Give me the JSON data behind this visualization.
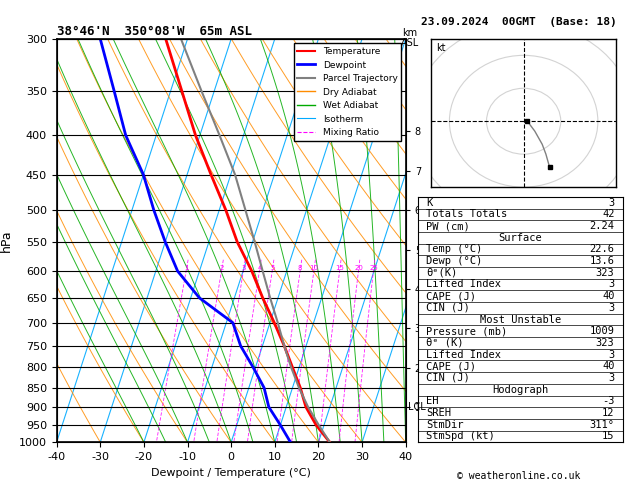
{
  "title_left": "38°46'N  350°08'W  65m ASL",
  "title_right": "23.09.2024  00GMT  (Base: 18)",
  "xlabel": "Dewpoint / Temperature (°C)",
  "ylabel_left": "hPa",
  "pressure_levels": [
    300,
    350,
    400,
    450,
    500,
    550,
    600,
    650,
    700,
    750,
    800,
    850,
    900,
    950,
    1000
  ],
  "temp_xlim": [
    -40,
    40
  ],
  "temp_color": "#ff0000",
  "dewpoint_color": "#0000ff",
  "parcel_color": "#808080",
  "dry_adiabat_color": "#ff8c00",
  "wet_adiabat_color": "#00aa00",
  "isotherm_color": "#00aaff",
  "mixing_ratio_color": "#ff00ff",
  "background_color": "#ffffff",
  "info_panel": {
    "K": 3,
    "Totals_Totals": 42,
    "PW_cm": 2.24,
    "Surface_Temp": 22.6,
    "Surface_Dewp": 13.6,
    "Surface_theta_e": 323,
    "Surface_LI": 3,
    "Surface_CAPE": 40,
    "Surface_CIN": 3,
    "MU_Pressure": 1009,
    "MU_theta_e": 323,
    "MU_LI": 3,
    "MU_CAPE": 40,
    "MU_CIN": 3,
    "Hodo_EH": -3,
    "Hodo_SREH": 12,
    "Hodo_StmDir": "311°",
    "Hodo_StmSpd": 15
  },
  "mixing_ratio_values": [
    1,
    2,
    3,
    4,
    5,
    8,
    10,
    15,
    20,
    25
  ],
  "copyright": "© weatheronline.co.uk"
}
